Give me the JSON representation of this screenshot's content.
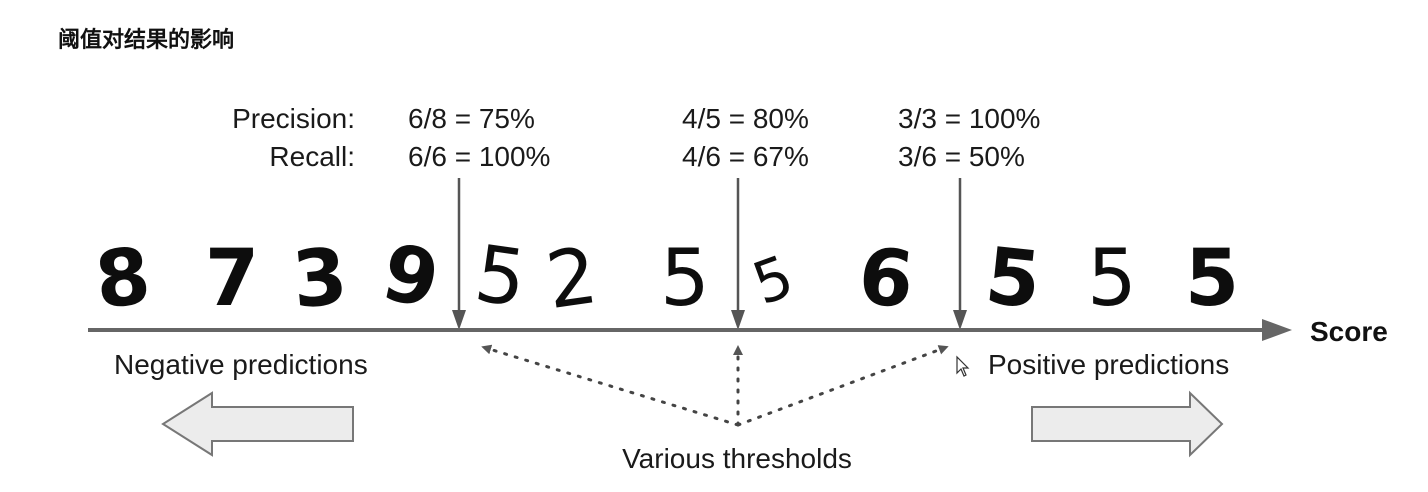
{
  "header": {
    "title": "阈值对结果的影响"
  },
  "precision_label": "Precision:",
  "recall_label": "Recall:",
  "thresholds": [
    {
      "precision": "6/8 = 75%",
      "recall": "6/6 = 100%"
    },
    {
      "precision": "4/5 = 80%",
      "recall": "4/6 = 67%"
    },
    {
      "precision": "3/3 = 100%",
      "recall": "3/6 = 50%"
    }
  ],
  "digits": [
    "8",
    "7",
    "3",
    "9",
    "5",
    "2",
    "5",
    "5",
    "6",
    "5",
    "5",
    "5"
  ],
  "score_label": "Score",
  "negative_label": "Negative predictions",
  "positive_label": "Positive predictions",
  "thresholds_label": "Various thresholds",
  "colors": {
    "axis": "#666666",
    "text": "#1a1a1a",
    "arrow_fill": "#ececec",
    "arrow_stroke": "#777777"
  }
}
